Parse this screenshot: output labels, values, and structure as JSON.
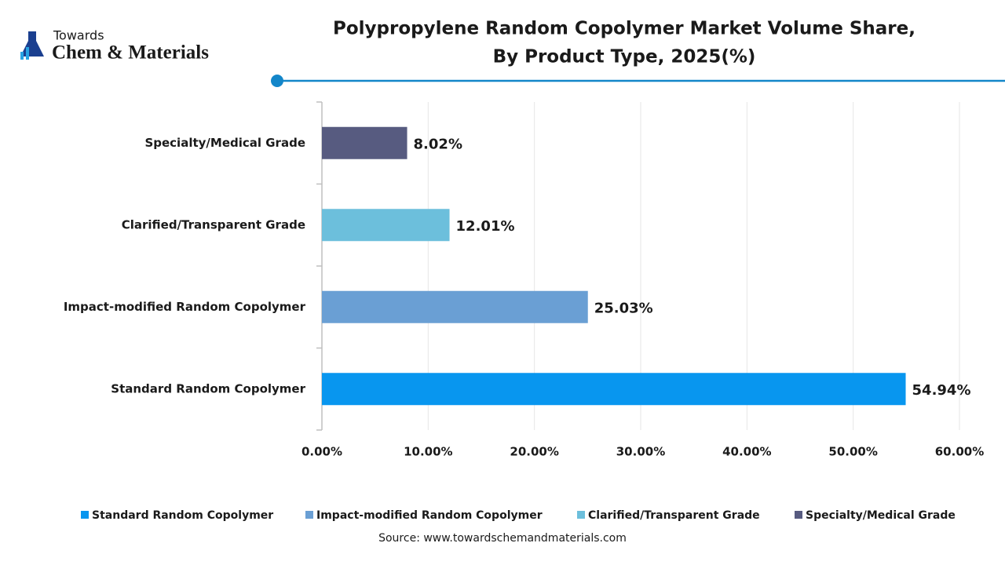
{
  "logo": {
    "top": "Towards",
    "name": "Chem & Materials"
  },
  "chart_data": {
    "type": "bar",
    "orientation": "horizontal",
    "title": [
      "Polypropylene Random Copolymer Market Volume Share,",
      "By Product Type, 2025(%)"
    ],
    "categories": [
      "Standard Random Copolymer",
      "Impact-modified Random Copolymer",
      "Clarified/Transparent Grade",
      "Specialty/Medical Grade"
    ],
    "values": [
      54.94,
      25.03,
      12.01,
      8.02
    ],
    "value_labels": [
      "54.94%",
      "25.03%",
      "12.01%",
      "8.02%"
    ],
    "colors": [
      "#0896ef",
      "#6a9fd4",
      "#6cbfdc",
      "#575b80"
    ],
    "xlim": [
      0,
      60
    ],
    "xticks": [
      {
        "value": 0,
        "label": "0.00%"
      },
      {
        "value": 10,
        "label": "10.00%"
      },
      {
        "value": 20,
        "label": "20.00%"
      },
      {
        "value": 30,
        "label": "30.00%"
      },
      {
        "value": 40,
        "label": "40.00%"
      },
      {
        "value": 50,
        "label": "50.00%"
      },
      {
        "value": 60,
        "label": "60.00%"
      }
    ],
    "grid": true,
    "legend": "bottom"
  },
  "source": "Source: www.towardschemandmaterials.com"
}
